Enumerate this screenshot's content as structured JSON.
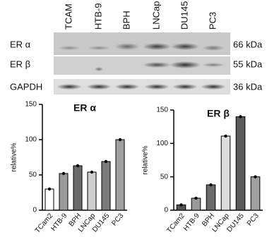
{
  "blot": {
    "lanes": [
      "TCAM",
      "HTB-9",
      "BPH",
      "LNCap",
      "DU145",
      "PC3"
    ],
    "rows": [
      {
        "label": "ER α",
        "size": "66 kDa"
      },
      {
        "label": "ER β",
        "size": "55 kDa"
      },
      {
        "label": "GAPDH",
        "size": "36 kDa"
      }
    ]
  },
  "chart_data": [
    {
      "type": "bar",
      "title": "ER α",
      "y_label": "relative%",
      "categories": [
        "TCam2",
        "HTB-9",
        "BPH",
        "LNCap",
        "DU145",
        "PC3"
      ],
      "values": [
        30,
        52,
        63,
        54,
        69,
        100
      ],
      "colors": [
        "#ffffff",
        "#9a9a9a",
        "#6a6a6a",
        "#cfcfcf",
        "#7a7a7a",
        "#a0a0a0"
      ],
      "ylim": [
        0,
        150
      ],
      "yticks": [
        0,
        50,
        100,
        150
      ]
    },
    {
      "type": "bar",
      "title": "ER β",
      "y_label": "relative%",
      "categories": [
        "TCam2",
        "HTB-9",
        "BPH",
        "LNCap",
        "DU145",
        "PC3"
      ],
      "values": [
        8,
        18,
        38,
        111,
        140,
        50
      ],
      "colors": [
        "#555555",
        "#9a9a9a",
        "#6a6a6a",
        "#dcdcdc",
        "#5a5a5a",
        "#a0a0a0"
      ],
      "ylim": [
        0,
        150
      ],
      "yticks": [
        0,
        50,
        100,
        150
      ]
    }
  ]
}
